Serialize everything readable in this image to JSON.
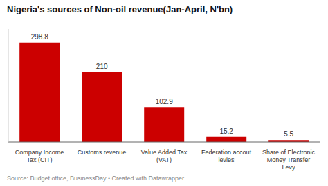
{
  "chart_data": {
    "type": "bar",
    "title": "Nigeria's sources of Non-oil revenue(Jan-April, N'bn)",
    "categories": [
      "Company Income\nTax (CIT)",
      "Customs revenue",
      "Value Added Tax\n(VAT)",
      "Federation accout\nlevies",
      "Share of Electronic\nMoney Transfer\nLevy"
    ],
    "values": [
      298.8,
      210,
      102.9,
      15.2,
      5.5
    ],
    "color": "#cc0000",
    "ylim": [
      0,
      340
    ],
    "grid": false,
    "data_labels": true,
    "tick_labels": "x",
    "annotations": [
      "Source: Budget office, BusinessDay • Created with Datawrapper"
    ]
  }
}
